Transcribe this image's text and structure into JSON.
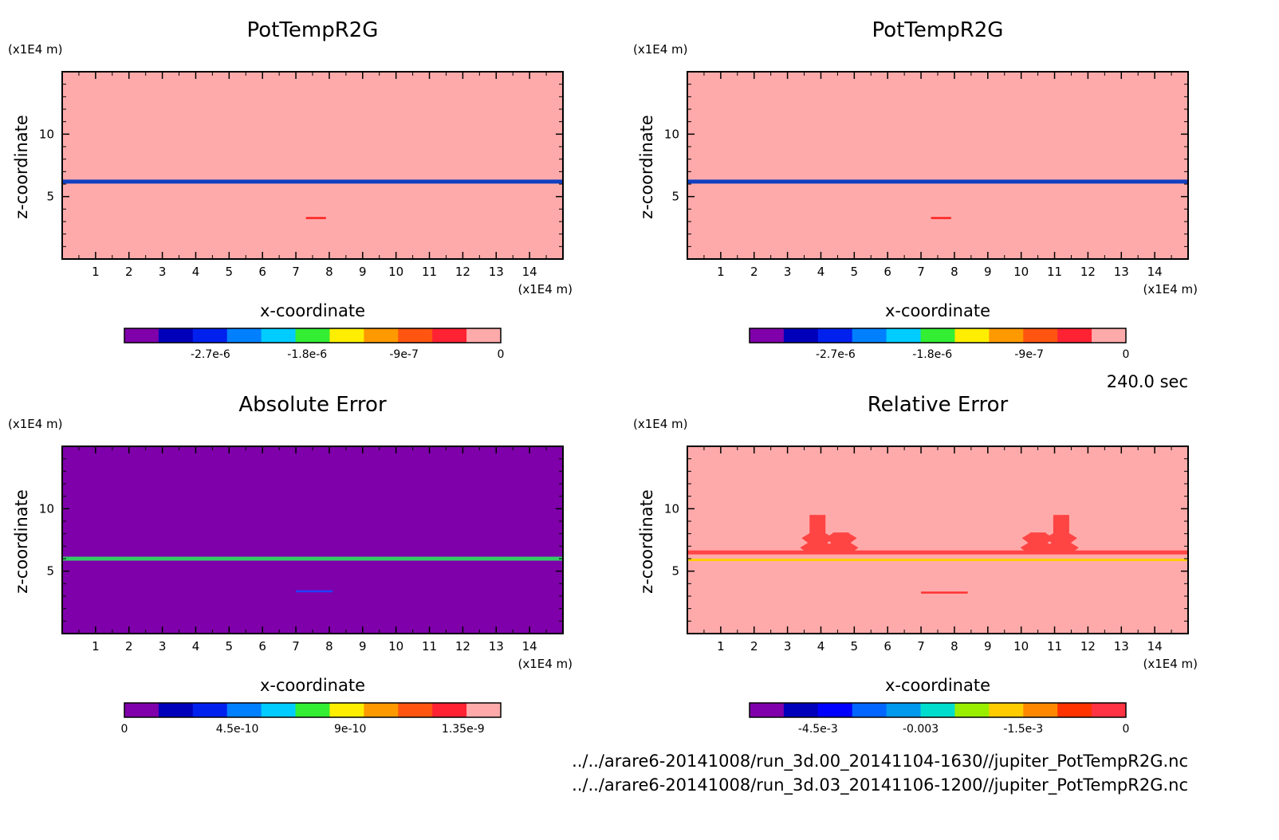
{
  "time_label": "240.0 sec",
  "footer_lines": [
    "../../arare6-20141008/run_3d.00_20141104-1630//jupiter_PotTempR2G.nc",
    "../../arare6-20141008/run_3d.03_20141106-1200//jupiter_PotTempR2G.nc"
  ],
  "colors": {
    "pink": "#ffaaaa",
    "purple": "#7f00aa",
    "red": "#ff4444"
  },
  "chart_data": [
    {
      "type": "heatmap",
      "title": "PotTempR2G",
      "xlabel": "x-coordinate",
      "ylabel": "z-coordinate",
      "x_unit": "(x1E4 m)",
      "y_unit": "(x1E4 m)",
      "x_ticks": [
        "1",
        "2",
        "3",
        "4",
        "5",
        "6",
        "7",
        "8",
        "9",
        "10",
        "11",
        "12",
        "13",
        "14"
      ],
      "y_ticks": [
        "5",
        "10"
      ],
      "xlim": [
        0,
        15
      ],
      "ylim": [
        0,
        15
      ],
      "background": "#ffaaaa",
      "features": [
        {
          "kind": "band",
          "z": 6.2,
          "color": "#1040c0"
        },
        {
          "kind": "segment",
          "x": [
            7.3,
            7.9
          ],
          "z": 3.3,
          "color": "#ff2020"
        }
      ],
      "colorbar": {
        "colors": [
          "#7f00aa",
          "#0000bb",
          "#0020ee",
          "#0080ff",
          "#00ccff",
          "#33ee33",
          "#ffee00",
          "#ff9900",
          "#ff5511",
          "#ff2233",
          "#ffaaaa"
        ],
        "tick_labels": [
          "-2.7e-6",
          "-1.8e-6",
          "-9e-7",
          "0"
        ],
        "tick_values": [
          -2.7e-06,
          -1.8e-06,
          -9e-07,
          0
        ],
        "range": [
          -3.5e-06,
          0
        ]
      }
    },
    {
      "type": "heatmap",
      "title": "PotTempR2G",
      "xlabel": "x-coordinate",
      "ylabel": "z-coordinate",
      "x_unit": "(x1E4 m)",
      "y_unit": "(x1E4 m)",
      "x_ticks": [
        "1",
        "2",
        "3",
        "4",
        "5",
        "6",
        "7",
        "8",
        "9",
        "10",
        "11",
        "12",
        "13",
        "14"
      ],
      "y_ticks": [
        "5",
        "10"
      ],
      "xlim": [
        0,
        15
      ],
      "ylim": [
        0,
        15
      ],
      "background": "#ffaaaa",
      "features": [
        {
          "kind": "band",
          "z": 6.2,
          "color": "#1040c0"
        },
        {
          "kind": "segment",
          "x": [
            7.3,
            7.9
          ],
          "z": 3.3,
          "color": "#ff2020"
        }
      ],
      "colorbar": {
        "colors": [
          "#7f00aa",
          "#0000bb",
          "#0020ee",
          "#0080ff",
          "#00ccff",
          "#33ee33",
          "#ffee00",
          "#ff9900",
          "#ff5511",
          "#ff2233",
          "#ffaaaa"
        ],
        "tick_labels": [
          "-2.7e-6",
          "-1.8e-6",
          "-9e-7",
          "0"
        ],
        "tick_values": [
          -2.7e-06,
          -1.8e-06,
          -9e-07,
          0
        ],
        "range": [
          -3.5e-06,
          0
        ]
      }
    },
    {
      "type": "heatmap",
      "title": "Absolute Error",
      "xlabel": "x-coordinate",
      "ylabel": "z-coordinate",
      "x_unit": "(x1E4 m)",
      "y_unit": "(x1E4 m)",
      "x_ticks": [
        "1",
        "2",
        "3",
        "4",
        "5",
        "6",
        "7",
        "8",
        "9",
        "10",
        "11",
        "12",
        "13",
        "14"
      ],
      "y_ticks": [
        "5",
        "10"
      ],
      "xlim": [
        0,
        15
      ],
      "ylim": [
        0,
        15
      ],
      "background": "#7f00aa",
      "features": [
        {
          "kind": "band",
          "z": 6.0,
          "color": "#33cc66"
        },
        {
          "kind": "segment",
          "x": [
            7.0,
            8.1
          ],
          "z": 3.4,
          "color": "#2040ff"
        }
      ],
      "colorbar": {
        "colors": [
          "#7f00aa",
          "#0000bb",
          "#0020ee",
          "#0080ff",
          "#00ccff",
          "#33ee33",
          "#ffee00",
          "#ff9900",
          "#ff5511",
          "#ff2233",
          "#ffaaaa"
        ],
        "tick_labels": [
          "0",
          "4.5e-10",
          "9e-10",
          "1.35e-9"
        ],
        "tick_values": [
          0,
          4.5e-10,
          9e-10,
          1.35e-09
        ],
        "range": [
          0,
          1.5e-09
        ]
      }
    },
    {
      "type": "heatmap",
      "title": "Relative Error",
      "xlabel": "x-coordinate",
      "ylabel": "z-coordinate",
      "x_unit": "(x1E4 m)",
      "y_unit": "(x1E4 m)",
      "x_ticks": [
        "1",
        "2",
        "3",
        "4",
        "5",
        "6",
        "7",
        "8",
        "9",
        "10",
        "11",
        "12",
        "13",
        "14"
      ],
      "y_ticks": [
        "5",
        "10"
      ],
      "xlim": [
        0,
        15
      ],
      "ylim": [
        0,
        15
      ],
      "background": "#ffaaaa",
      "features": [
        {
          "kind": "band",
          "z": 6.5,
          "color": "#ff4444"
        },
        {
          "kind": "thin-band",
          "z": 5.9,
          "color": "#ffcc00"
        },
        {
          "kind": "segment",
          "x": [
            7.0,
            8.4
          ],
          "z": 3.3,
          "color": "#ff3333"
        },
        {
          "kind": "plume",
          "x": 3.9,
          "z_top": 9.5,
          "color": "#ff4444"
        },
        {
          "kind": "plume",
          "x": 4.6,
          "z_top": 8.1,
          "color": "#ff4444"
        },
        {
          "kind": "plume",
          "x": 11.2,
          "z_top": 9.5,
          "color": "#ff4444"
        },
        {
          "kind": "plume",
          "x": 10.5,
          "z_top": 8.1,
          "color": "#ff4444"
        }
      ],
      "colorbar": {
        "colors": [
          "#7f00aa",
          "#0000bb",
          "#0000ff",
          "#0066ff",
          "#0099ee",
          "#00ddcc",
          "#99ee00",
          "#ffcc00",
          "#ff8800",
          "#ff3300",
          "#ff3344"
        ],
        "tick_labels": [
          "-4.5e-3",
          "-0.003",
          "-1.5e-3",
          "0"
        ],
        "tick_values": [
          -0.0045,
          -0.003,
          -0.0015,
          0
        ],
        "range": [
          -0.0055,
          0
        ]
      }
    }
  ]
}
